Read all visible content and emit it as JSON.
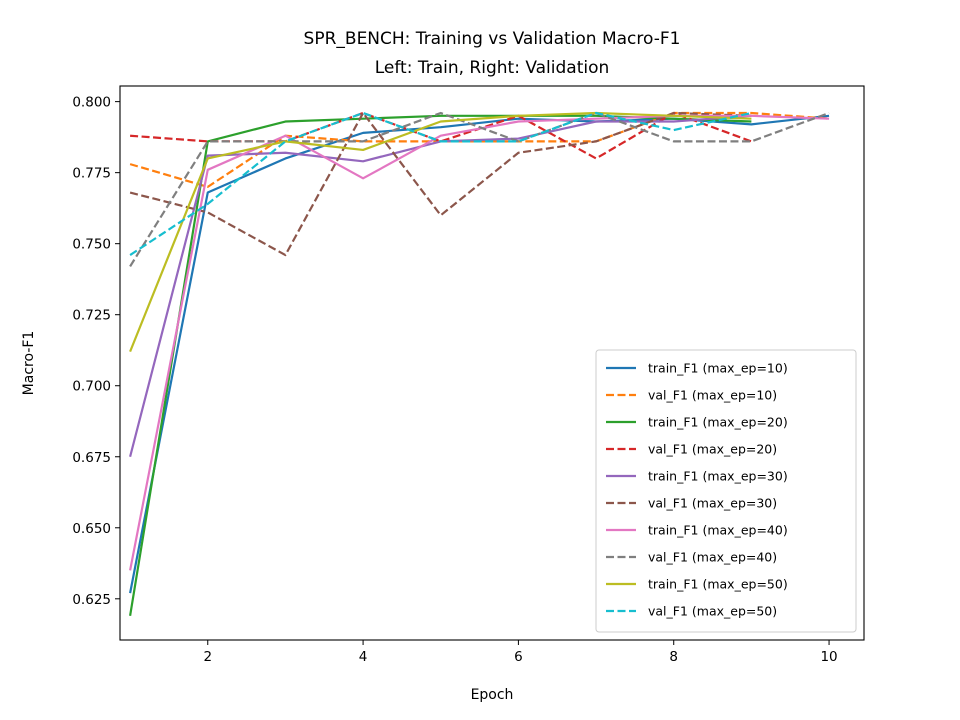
{
  "chart_data": {
    "type": "line",
    "title": "SPR_BENCH: Training vs Validation Macro-F1",
    "subtitle": "Left: Train, Right: Validation",
    "xlabel": "Epoch",
    "ylabel": "Macro-F1",
    "xlim": [
      0.87,
      10.45
    ],
    "ylim": [
      0.6105,
      0.8055
    ],
    "xticks": [
      2,
      4,
      6,
      8,
      10
    ],
    "yticks": [
      0.625,
      0.65,
      0.675,
      0.7,
      0.725,
      0.75,
      0.775,
      0.8
    ],
    "xtick_labels": [
      "2",
      "4",
      "6",
      "8",
      "10"
    ],
    "ytick_labels": [
      "0.625",
      "0.650",
      "0.675",
      "0.700",
      "0.725",
      "0.750",
      "0.775",
      "0.800"
    ],
    "grid": false,
    "legend_position": "lower-right",
    "series": [
      {
        "name": "train_F1 (max_ep=10)",
        "style": "solid",
        "color": "#1f77b4",
        "x": [
          1,
          2,
          3,
          4,
          5,
          6,
          7,
          8,
          9,
          10
        ],
        "y": [
          0.627,
          0.768,
          0.78,
          0.789,
          0.791,
          0.794,
          0.793,
          0.794,
          0.792,
          0.795
        ]
      },
      {
        "name": "val_F1 (max_ep=10)",
        "style": "dashed",
        "color": "#ff7f0e",
        "x": [
          1,
          2,
          3,
          4,
          5,
          6,
          7,
          8,
          9,
          10
        ],
        "y": [
          0.778,
          0.77,
          0.788,
          0.786,
          0.786,
          0.786,
          0.786,
          0.796,
          0.796,
          0.794
        ]
      },
      {
        "name": "train_F1 (max_ep=20)",
        "style": "solid",
        "color": "#2ca02c",
        "x": [
          1,
          2,
          3,
          4,
          5,
          6,
          7,
          8,
          9
        ],
        "y": [
          0.619,
          0.786,
          0.793,
          0.794,
          0.795,
          0.795,
          0.795,
          0.794,
          0.793
        ]
      },
      {
        "name": "val_F1 (max_ep=20)",
        "style": "dashed",
        "color": "#d62728",
        "x": [
          1,
          2,
          3,
          4,
          5,
          6,
          7,
          8,
          9
        ],
        "y": [
          0.788,
          0.786,
          0.786,
          0.796,
          0.786,
          0.795,
          0.78,
          0.796,
          0.786
        ]
      },
      {
        "name": "train_F1 (max_ep=30)",
        "style": "solid",
        "color": "#9467bd",
        "x": [
          1,
          2,
          3,
          4,
          5,
          6,
          7,
          8,
          9
        ],
        "y": [
          0.675,
          0.781,
          0.782,
          0.779,
          0.786,
          0.787,
          0.793,
          0.793,
          0.795
        ]
      },
      {
        "name": "val_F1 (max_ep=30)",
        "style": "dashed",
        "color": "#8c564b",
        "x": [
          1,
          2,
          3,
          4,
          5,
          6,
          7,
          8,
          9
        ],
        "y": [
          0.768,
          0.761,
          0.746,
          0.796,
          0.76,
          0.782,
          0.786,
          0.796,
          0.795
        ]
      },
      {
        "name": "train_F1 (max_ep=40)",
        "style": "solid",
        "color": "#e377c2",
        "x": [
          1,
          2,
          3,
          4,
          5,
          6,
          7,
          8,
          9,
          10
        ],
        "y": [
          0.635,
          0.776,
          0.788,
          0.773,
          0.788,
          0.793,
          0.794,
          0.795,
          0.795,
          0.794
        ]
      },
      {
        "name": "val_F1 (max_ep=40)",
        "style": "dashed",
        "color": "#7f7f7f",
        "x": [
          1,
          2,
          3,
          4,
          5,
          6,
          7,
          8,
          9,
          10
        ],
        "y": [
          0.742,
          0.786,
          0.786,
          0.786,
          0.796,
          0.786,
          0.796,
          0.786,
          0.786,
          0.796
        ]
      },
      {
        "name": "train_F1 (max_ep=50)",
        "style": "solid",
        "color": "#bcbd22",
        "x": [
          1,
          2,
          3,
          4,
          5,
          6,
          7,
          8,
          9
        ],
        "y": [
          0.712,
          0.78,
          0.786,
          0.783,
          0.793,
          0.795,
          0.796,
          0.795,
          0.794
        ]
      },
      {
        "name": "val_F1 (max_ep=50)",
        "style": "dashed",
        "color": "#17becf",
        "x": [
          1,
          2,
          3,
          4,
          5,
          6,
          7,
          8,
          9
        ],
        "y": [
          0.746,
          0.764,
          0.786,
          0.796,
          0.786,
          0.786,
          0.796,
          0.79,
          0.796
        ]
      }
    ]
  }
}
